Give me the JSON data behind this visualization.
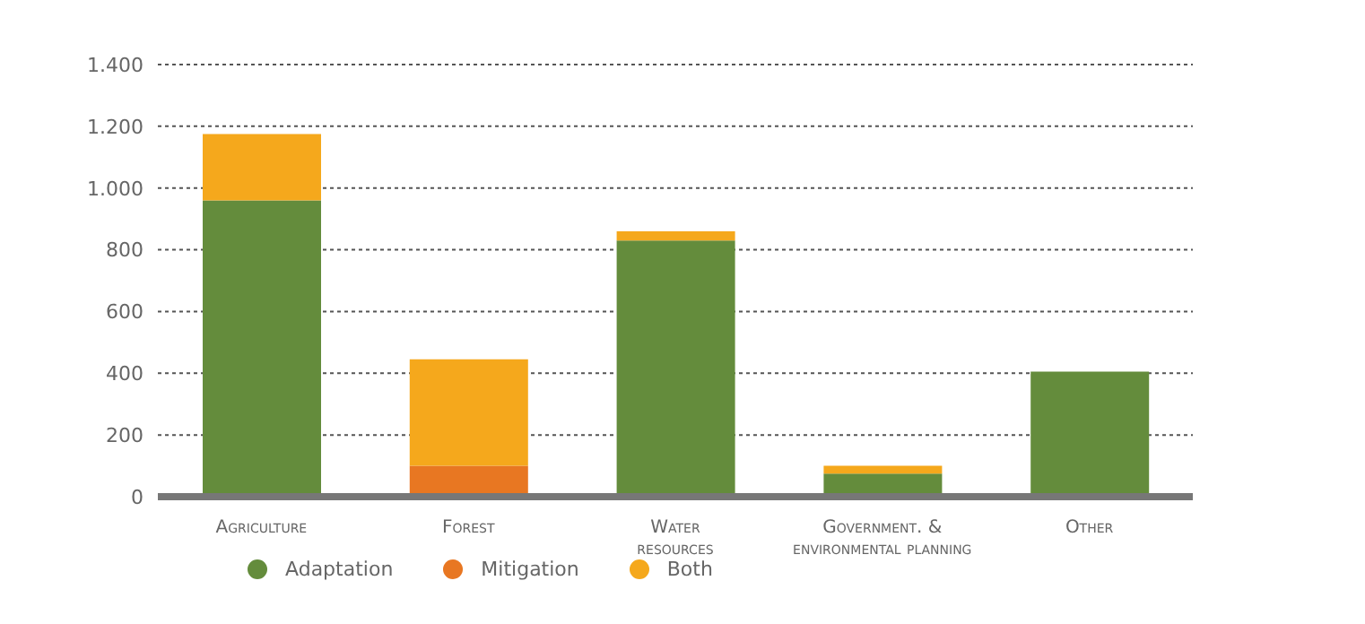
{
  "chart_data": {
    "type": "bar",
    "stacked": true,
    "categories": [
      "Agriculture",
      "Forest",
      "Water\nresources",
      "Government. &\nenvironmental planning",
      "Other"
    ],
    "series": [
      {
        "name": "Adaptation",
        "color": "#648c3c",
        "values": [
          960,
          0,
          830,
          75,
          405
        ]
      },
      {
        "name": "Mitigation",
        "color": "#e87722",
        "values": [
          0,
          100,
          0,
          0,
          0
        ]
      },
      {
        "name": "Both",
        "color": "#f5a81c",
        "values": [
          215,
          345,
          30,
          25,
          0
        ]
      }
    ],
    "ylim": [
      0,
      1400
    ],
    "yticks": [
      {
        "value": 0,
        "label": "0"
      },
      {
        "value": 200,
        "label": "200"
      },
      {
        "value": 400,
        "label": "400"
      },
      {
        "value": 600,
        "label": "600"
      },
      {
        "value": 800,
        "label": "800"
      },
      {
        "value": 1000,
        "label": "1.000"
      },
      {
        "value": 1200,
        "label": "1.200"
      },
      {
        "value": 1400,
        "label": "1.400"
      }
    ],
    "grid": "y",
    "legend": "bottom left"
  }
}
